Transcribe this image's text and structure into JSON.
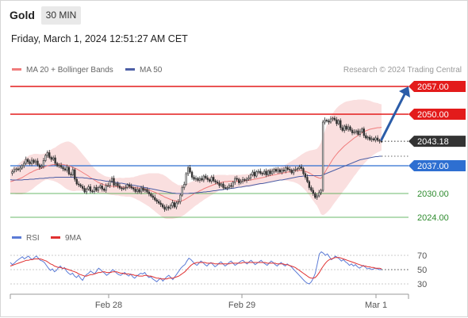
{
  "header": {
    "symbol": "Gold",
    "timeframe": "30 MIN",
    "datetime": "Friday, March 1, 2024 12:51:27 AM CET"
  },
  "colors": {
    "resistance": "#e31b1b",
    "support": "#2e6fd1",
    "support_green": "#3aa13a",
    "candle_up": "#e0e0e0",
    "candle_down": "#333333",
    "bollinger": "#fadcdc",
    "ma20": "#f07c7c",
    "ma50": "#4d5fa6",
    "rsi": "#5b7bd6",
    "rsi_ma": "#e03131",
    "arrow": "#2b5ca8"
  },
  "chart_data": [
    {
      "type": "candlestick",
      "legend": [
        "MA 20 + Bollinger Bands",
        "MA 50"
      ],
      "credit": "Research © 2024 Trading Central",
      "x_ticks": [
        "Feb 28",
        "Feb 29",
        "Mar 1"
      ],
      "ylim": [
        2020,
        2062
      ],
      "last_price": "2043.18",
      "levels": [
        {
          "value": 2057.0,
          "label": "2057.00",
          "kind": "resistance"
        },
        {
          "value": 2050.0,
          "label": "2050.00",
          "kind": "resistance"
        },
        {
          "value": 2037.0,
          "label": "2037.00",
          "kind": "support"
        },
        {
          "value": 2030.0,
          "label": "2030.00",
          "kind": "support-minor"
        },
        {
          "value": 2024.0,
          "label": "2024.00",
          "kind": "support-minor"
        }
      ],
      "close_series": [
        2035.1,
        2035.5,
        2036.0,
        2036.2,
        2036.0,
        2036.4,
        2037.0,
        2037.6,
        2038.6,
        2038.0,
        2037.5,
        2038.4,
        2037.8,
        2038.2,
        2037.2,
        2036.6,
        2036.9,
        2038.3,
        2039.6,
        2040.3,
        2039.1,
        2038.6,
        2039.0,
        2037.6,
        2037.0,
        2037.1,
        2036.6,
        2036.2,
        2035.9,
        2036.6,
        2034.9,
        2034.7,
        2036.0,
        2033.6,
        2032.4,
        2032.2,
        2031.8,
        2031.3,
        2030.4,
        2031.1,
        2031.7,
        2030.6,
        2030.5,
        2031.5,
        2030.8,
        2031.5,
        2031.9,
        2031.1,
        2030.8,
        2032.0,
        2032.0,
        2033.1,
        2033.8,
        2032.1,
        2032.5,
        2031.9,
        2031.4,
        2031.2,
        2031.3,
        2031.5,
        2032.2,
        2031.8,
        2031.4,
        2031.1,
        2030.5,
        2031.0,
        2030.4,
        2031.4,
        2030.8,
        2031.0,
        2030.4,
        2029.9,
        2029.4,
        2029.0,
        2028.4,
        2028.0,
        2027.6,
        2027.2,
        2026.6,
        2026.0,
        2026.6,
        2026.3,
        2026.9,
        2027.7,
        2026.6,
        2027.6,
        2027.9,
        2029.6,
        2031.5,
        2032.3,
        2035.0,
        2036.5,
        2035.4,
        2034.1,
        2033.6,
        2033.8,
        2033.3,
        2033.8,
        2033.4,
        2034.4,
        2033.9,
        2033.5,
        2033.1,
        2034.1,
        2033.2,
        2032.9,
        2032.6,
        2032.0,
        2032.4,
        2031.5,
        2031.4,
        2031.5,
        2032.0,
        2031.8,
        2032.8,
        2033.8,
        2033.6,
        2032.7,
        2033.1,
        2033.5,
        2033.3,
        2033.6,
        2033.9,
        2034.7,
        2035.4,
        2034.4,
        2035.5,
        2035.6,
        2035.1,
        2035.0,
        2035.6,
        2034.7,
        2035.7,
        2035.0,
        2035.6,
        2036.1,
        2035.6,
        2036.0,
        2035.4,
        2035.9,
        2035.7,
        2036.5,
        2036.1,
        2035.9,
        2035.2,
        2035.9,
        2036.1,
        2036.3,
        2036.7,
        2036.3,
        2035.0,
        2034.1,
        2033.0,
        2031.5,
        2030.8,
        2030.0,
        2029.0,
        2029.4,
        2030.2,
        2030.8,
        2048.0,
        2048.5,
        2048.3,
        2048.0,
        2048.8,
        2049.0,
        2048.6,
        2047.6,
        2048.4,
        2046.6,
        2045.9,
        2047.0,
        2046.2,
        2046.8,
        2046.0,
        2045.3,
        2045.5,
        2045.8,
        2044.9,
        2045.6,
        2046.3,
        2044.6,
        2044.0,
        2044.2,
        2043.6,
        2043.8,
        2043.5,
        2044.0,
        2043.4,
        2043.2,
        2043.18
      ],
      "ma20_series": [
        2033.0,
        2033.1,
        2033.3,
        2033.4,
        2033.6,
        2033.8,
        2034.0,
        2034.3,
        2034.6,
        2034.9,
        2035.2,
        2035.4,
        2035.7,
        2035.9,
        2036.1,
        2036.2,
        2036.4,
        2036.6,
        2036.8,
        2037.0,
        2037.1,
        2037.2,
        2037.3,
        2037.3,
        2037.4,
        2037.4,
        2037.4,
        2037.3,
        2037.2,
        2037.1,
        2037.0,
        2036.8,
        2036.6,
        2036.4,
        2036.2,
        2035.9,
        2035.6,
        2035.3,
        2035.0,
        2034.7,
        2034.4,
        2034.0,
        2033.7,
        2033.4,
        2033.1,
        2032.8,
        2032.6,
        2032.4,
        2032.2,
        2032.1,
        2032.0,
        2031.9,
        2031.8,
        2031.8,
        2031.7,
        2031.7,
        2031.7,
        2031.6,
        2031.6,
        2031.6,
        2031.6,
        2031.6,
        2031.6,
        2031.5,
        2031.5,
        2031.4,
        2031.4,
        2031.3,
        2031.2,
        2031.1,
        2031.0,
        2030.9,
        2030.7,
        2030.5,
        2030.3,
        2030.1,
        2029.9,
        2029.6,
        2029.4,
        2029.1,
        2028.9,
        2028.7,
        2028.5,
        2028.3,
        2028.2,
        2028.1,
        2028.0,
        2028.1,
        2028.2,
        2028.4,
        2028.7,
        2029.0,
        2029.3,
        2029.6,
        2029.9,
        2030.2,
        2030.4,
        2030.7,
        2030.9,
        2031.2,
        2031.4,
        2031.6,
        2031.8,
        2032.0,
        2032.2,
        2032.4,
        2032.6,
        2032.7,
        2032.8,
        2032.9,
        2033.0,
        2033.0,
        2033.1,
        2033.1,
        2033.1,
        2033.1,
        2033.1,
        2033.1,
        2033.1,
        2033.2,
        2033.2,
        2033.3,
        2033.3,
        2033.4,
        2033.5,
        2033.6,
        2033.7,
        2033.8,
        2033.9,
        2034.0,
        2034.1,
        2034.3,
        2034.4,
        2034.5,
        2034.6,
        2034.7,
        2034.8,
        2034.9,
        2035.0,
        2035.1,
        2035.2,
        2035.3,
        2035.4,
        2035.5,
        2035.6,
        2035.7,
        2035.7,
        2035.8,
        2035.8,
        2035.8,
        2035.7,
        2035.6,
        2035.4,
        2035.2,
        2034.9,
        2034.6,
        2034.3,
        2034.1,
        2033.9,
        2033.8,
        2034.5,
        2035.3,
        2036.2,
        2037.0,
        2037.8,
        2038.6,
        2039.3,
        2039.9,
        2040.5,
        2041.0,
        2041.5,
        2042.0,
        2042.4,
        2042.8,
        2043.2,
        2043.6,
        2044.0,
        2044.3,
        2044.7,
        2045.0,
        2045.3,
        2045.6,
        2045.8,
        2046.0,
        2046.2,
        2046.3,
        2046.4,
        2046.5,
        2046.6,
        2046.6,
        2046.7
      ],
      "band_width_series": [
        3,
        3.2,
        3.4,
        3.6,
        3.8,
        4,
        4.2,
        4.3,
        4.4,
        4.5,
        4.5,
        4.4,
        4.3,
        4.1,
        3.9,
        3.7,
        3.5,
        3.4,
        3.4,
        3.5,
        3.7,
        3.9,
        4.1,
        4.3,
        4.6,
        4.9,
        5.2,
        5.5,
        5.8,
        6,
        6.1,
        6.1,
        6,
        5.8,
        5.5,
        5.2,
        4.9,
        4.6,
        4.3,
        4,
        3.7,
        3.4,
        3.2,
        3,
        2.8,
        2.6,
        2.5,
        2.4,
        2.3,
        2.2,
        2.2,
        2.2,
        2.2,
        2.2,
        2.2,
        2.2,
        2.3,
        2.3,
        2.3,
        2.4,
        2.4,
        2.4,
        2.5,
        2.6,
        2.8,
        3,
        3.2,
        3.4,
        3.6,
        3.8,
        4,
        4.2,
        4.4,
        4.6,
        4.8,
        5,
        5.2,
        5.3,
        5.4,
        5.4,
        5.3,
        5.1,
        4.9,
        4.7,
        4.5,
        4.3,
        4.1,
        4,
        3.9,
        3.8,
        3.7,
        3.6,
        3.5,
        3.4,
        3.3,
        3.2,
        3.1,
        3,
        2.9,
        2.8,
        2.7,
        2.6,
        2.5,
        2.4,
        2.3,
        2.2,
        2.1,
        2,
        1.9,
        1.8,
        1.7,
        1.6,
        1.6,
        1.6,
        1.6,
        1.6,
        1.6,
        1.6,
        1.6,
        1.6,
        1.6,
        1.6,
        1.6,
        1.6,
        1.6,
        1.6,
        1.6,
        1.6,
        1.6,
        1.6,
        1.6,
        1.6,
        1.6,
        1.6,
        1.6,
        1.6,
        1.6,
        1.6,
        1.7,
        1.8,
        1.9,
        2,
        2.2,
        2.4,
        2.6,
        2.8,
        3,
        3.3,
        3.6,
        4,
        4.4,
        4.8,
        5.2,
        5.6,
        6,
        6.4,
        6.8,
        7.2,
        8,
        9,
        10,
        10.5,
        11,
        11.3,
        11.5,
        11.6,
        11.6,
        11.6,
        11.5,
        11.4,
        11.2,
        11,
        10.8,
        10.5,
        10.2,
        9.9,
        9.6,
        9.3,
        9,
        8.7,
        8.4,
        8.1,
        7.8,
        7.5,
        7.2,
        6.9,
        6.6,
        6.4,
        6.2,
        6.0,
        5.8
      ],
      "ma50_series": [
        2033.5,
        2033.4,
        2033.4,
        2033.4,
        2033.4,
        2033.4,
        2033.4,
        2033.5,
        2033.5,
        2033.5,
        2033.6,
        2033.6,
        2033.6,
        2033.7,
        2033.7,
        2033.8,
        2033.8,
        2033.8,
        2033.9,
        2033.9,
        2034.0,
        2034.0,
        2034.0,
        2034.1,
        2034.1,
        2034.1,
        2034.1,
        2034.1,
        2034.1,
        2034.1,
        2034.1,
        2034.1,
        2034.1,
        2034.1,
        2034.1,
        2034.0,
        2034.0,
        2034.0,
        2033.9,
        2033.9,
        2033.8,
        2033.7,
        2033.7,
        2033.6,
        2033.5,
        2033.4,
        2033.4,
        2033.3,
        2033.2,
        2033.1,
        2033.1,
        2033.0,
        2032.9,
        2032.9,
        2032.8,
        2032.7,
        2032.6,
        2032.6,
        2032.5,
        2032.4,
        2032.3,
        2032.2,
        2032.1,
        2032.1,
        2032.0,
        2031.9,
        2031.8,
        2031.7,
        2031.6,
        2031.5,
        2031.4,
        2031.3,
        2031.2,
        2031.1,
        2031.0,
        2030.9,
        2030.8,
        2030.7,
        2030.6,
        2030.5,
        2030.4,
        2030.3,
        2030.2,
        2030.1,
        2030.1,
        2030.0,
        2030.0,
        2030.0,
        2030.0,
        2030.0,
        2030.0,
        2030.0,
        2030.1,
        2030.1,
        2030.1,
        2030.2,
        2030.2,
        2030.3,
        2030.3,
        2030.4,
        2030.4,
        2030.5,
        2030.5,
        2030.6,
        2030.7,
        2030.7,
        2030.8,
        2030.9,
        2030.9,
        2031.0,
        2031.1,
        2031.1,
        2031.2,
        2031.3,
        2031.3,
        2031.4,
        2031.5,
        2031.6,
        2031.6,
        2031.7,
        2031.8,
        2031.9,
        2031.9,
        2032.0,
        2032.1,
        2032.2,
        2032.3,
        2032.4,
        2032.5,
        2032.5,
        2032.6,
        2032.7,
        2032.8,
        2032.9,
        2033.0,
        2033.1,
        2033.2,
        2033.3,
        2033.4,
        2033.4,
        2033.5,
        2033.6,
        2033.7,
        2033.8,
        2033.9,
        2034.0,
        2034.1,
        2034.2,
        2034.3,
        2034.3,
        2034.4,
        2034.4,
        2034.5,
        2034.5,
        2034.5,
        2034.5,
        2034.5,
        2034.5,
        2034.5,
        2034.5,
        2034.7,
        2034.9,
        2035.1,
        2035.3,
        2035.5,
        2035.7,
        2035.9,
        2036.1,
        2036.3,
        2036.5,
        2036.7,
        2036.9,
        2037.1,
        2037.3,
        2037.5,
        2037.7,
        2037.9,
        2038.1,
        2038.3,
        2038.5,
        2038.6,
        2038.7,
        2038.8,
        2038.9,
        2039.0,
        2039.1,
        2039.2,
        2039.3,
        2039.3,
        2039.4,
        2039.4
      ]
    },
    {
      "type": "line",
      "legend": [
        "RSI",
        "9MA"
      ],
      "y_ticks": [
        "70",
        "50",
        "30"
      ],
      "ylim": [
        20,
        80
      ],
      "rsi_series": [
        60,
        57,
        59,
        62,
        64,
        66,
        68,
        65,
        67,
        69,
        66,
        64,
        67,
        69,
        66,
        63,
        62,
        60,
        56,
        52,
        49,
        51,
        47,
        49,
        53,
        55,
        51,
        53,
        48,
        45,
        43,
        45,
        41,
        39,
        42,
        38,
        35,
        40,
        43,
        45,
        48,
        46,
        44,
        48,
        52,
        50,
        47,
        45,
        42,
        44,
        47,
        50,
        48,
        45,
        43,
        42,
        44,
        46,
        43,
        41,
        44,
        40,
        38,
        41,
        43,
        45,
        44,
        46,
        42,
        39,
        40,
        37,
        35,
        33,
        36,
        38,
        34,
        37,
        40,
        42,
        39,
        36,
        40,
        44,
        48,
        52,
        55,
        57,
        62,
        66,
        64,
        61,
        58,
        56,
        59,
        62,
        60,
        57,
        55,
        58,
        60,
        57,
        54,
        56,
        59,
        61,
        58,
        55,
        57,
        60,
        62,
        59,
        56,
        58,
        60,
        62,
        63,
        60,
        58,
        61,
        63,
        60,
        57,
        59,
        61,
        63,
        60,
        58,
        56,
        59,
        62,
        60,
        57,
        55,
        58,
        60,
        57,
        55,
        58,
        56,
        54,
        51,
        48,
        45,
        42,
        39,
        36,
        33,
        31,
        30,
        33,
        38,
        45,
        58,
        72,
        75,
        73,
        70,
        72,
        68,
        64,
        66,
        69,
        67,
        65,
        62,
        64,
        61,
        59,
        56,
        58,
        55,
        57,
        54,
        52,
        54,
        56,
        53,
        51,
        52,
        50,
        51,
        52,
        51,
        50,
        50
      ],
      "rsi_ma_series": [
        55,
        56,
        57,
        58,
        59,
        60,
        61,
        62,
        63,
        63,
        64,
        64,
        65,
        65,
        65,
        65,
        64,
        63,
        62,
        60,
        58,
        57,
        55,
        54,
        53,
        53,
        52,
        52,
        51,
        50,
        49,
        48,
        47,
        46,
        44,
        43,
        42,
        41,
        41,
        42,
        43,
        43,
        44,
        45,
        46,
        46,
        47,
        47,
        46,
        46,
        46,
        47,
        47,
        47,
        46,
        45,
        45,
        44,
        44,
        44,
        43,
        43,
        42,
        42,
        41,
        41,
        41,
        42,
        42,
        41,
        41,
        40,
        39,
        38,
        38,
        37,
        37,
        37,
        37,
        38,
        38,
        38,
        39,
        40,
        41,
        43,
        45,
        47,
        50,
        53,
        56,
        58,
        59,
        60,
        60,
        60,
        60,
        60,
        59,
        59,
        59,
        59,
        58,
        58,
        58,
        58,
        58,
        58,
        58,
        58,
        59,
        59,
        59,
        59,
        59,
        59,
        60,
        60,
        60,
        60,
        60,
        60,
        60,
        60,
        60,
        60,
        60,
        60,
        59,
        59,
        59,
        59,
        59,
        58,
        58,
        58,
        58,
        57,
        57,
        56,
        55,
        54,
        53,
        51,
        49,
        47,
        45,
        43,
        41,
        39,
        38,
        38,
        39,
        42,
        46,
        51,
        55,
        59,
        62,
        64,
        65,
        66,
        67,
        67,
        67,
        66,
        65,
        64,
        63,
        62,
        61,
        60,
        59,
        58,
        57,
        56,
        55,
        55,
        54,
        54,
        53,
        53,
        52,
        52,
        52,
        51
      ]
    }
  ]
}
